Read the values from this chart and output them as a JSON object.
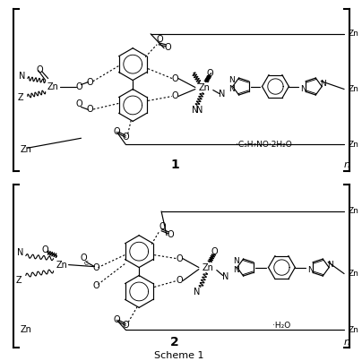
{
  "title": "Scheme 1",
  "compound1_label": "1",
  "compound2_label": "2",
  "solvent1": "·C₃H₇NO·2H₂O",
  "solvent2": "·H₂O",
  "n_label": "n",
  "background_color": "#ffffff",
  "text_color": "#000000",
  "line_color": "#000000",
  "figsize": [
    4.04,
    4.03
  ],
  "dpi": 100
}
